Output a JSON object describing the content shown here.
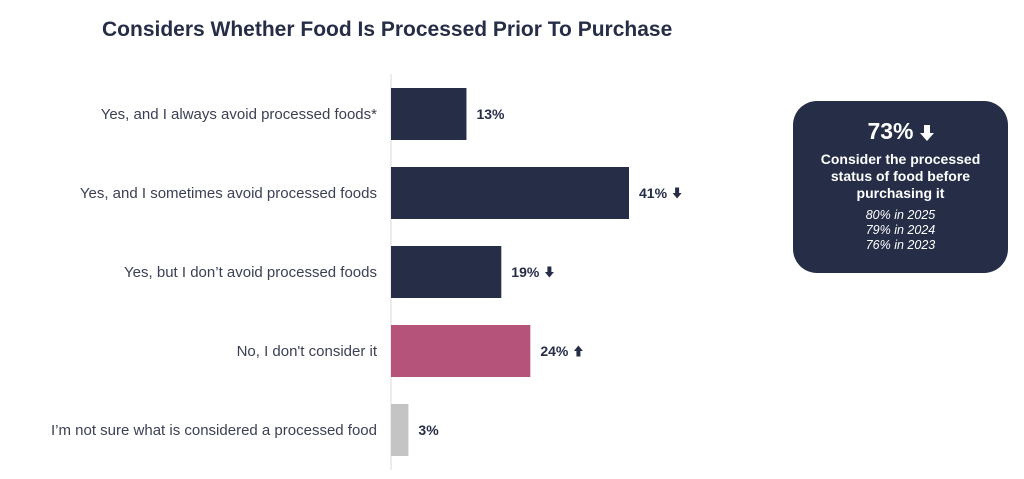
{
  "title": "Considers Whether Food Is Processed Prior To Purchase",
  "chart_data": {
    "type": "bar",
    "orientation": "horizontal",
    "categories": [
      "Yes, and I always avoid processed foods*",
      "Yes, and I sometimes avoid processed foods",
      "Yes, but I don’t avoid processed foods",
      "No, I don't consider it",
      "I’m not sure what is considered a processed food"
    ],
    "values": [
      13,
      41,
      19,
      24,
      3
    ],
    "value_labels": [
      "13%",
      "41%",
      "19%",
      "24%",
      "3%"
    ],
    "trend": [
      "none",
      "down",
      "down",
      "up",
      "none"
    ],
    "colors": [
      "#262d47",
      "#262d47",
      "#262d47",
      "#b5537a",
      "#c4c4c4"
    ],
    "title": "Considers Whether Food Is Processed Prior To Purchase",
    "xlabel": "",
    "ylabel": "",
    "xlim": [
      0,
      45
    ],
    "grid": false,
    "legend": "none"
  },
  "callout": {
    "headline": "73%",
    "trend": "down",
    "text": "Consider the processed status of food before purchasing it",
    "history": [
      "80% in 2025",
      "79% in 2024",
      "76% in 2023"
    ]
  },
  "colors": {
    "navy": "#262d47",
    "pink": "#b5537a",
    "gray": "#c4c4c4",
    "axis": "#d9d9d9"
  }
}
